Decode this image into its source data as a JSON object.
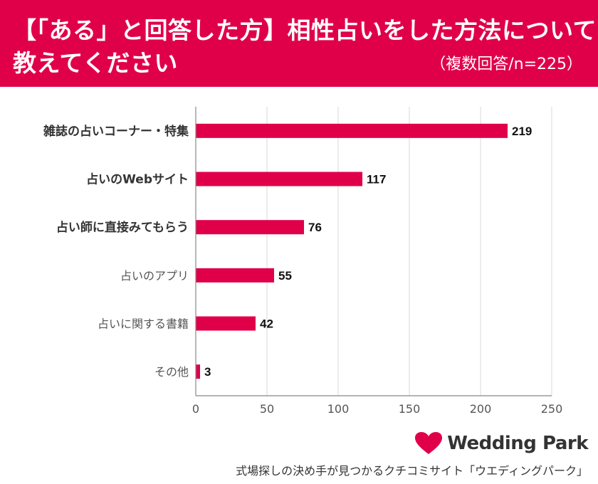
{
  "header": {
    "title_line1": "【「ある」と回答した方】相性占いをした方法について",
    "title_line2": "教えてください",
    "subtitle": "（複数回答/n=225）"
  },
  "colors": {
    "accent": "#e0004a",
    "bar": "#e0004a",
    "grid": "#d9d9d9",
    "text": "#333333"
  },
  "chart_data": {
    "type": "bar",
    "orientation": "horizontal",
    "categories": [
      "雑誌の占いコーナー・特集",
      "占いのWebサイト",
      "占い師に直接みてもらう",
      "占いのアプリ",
      "占いに関する書籍",
      "その他"
    ],
    "values": [
      219,
      117,
      76,
      55,
      42,
      3
    ],
    "bold_categories": [
      true,
      true,
      true,
      false,
      false,
      false
    ],
    "x_ticks": [
      "0",
      "50",
      "100",
      "150",
      "200",
      "250"
    ],
    "xlim": [
      0,
      250
    ],
    "grid": true
  },
  "footer": {
    "logo_text": "Wedding Park",
    "logo_icon": "heart-icon",
    "tagline": "式場探しの決め手が見つかるクチコミサイト「ウエディングパーク」"
  }
}
